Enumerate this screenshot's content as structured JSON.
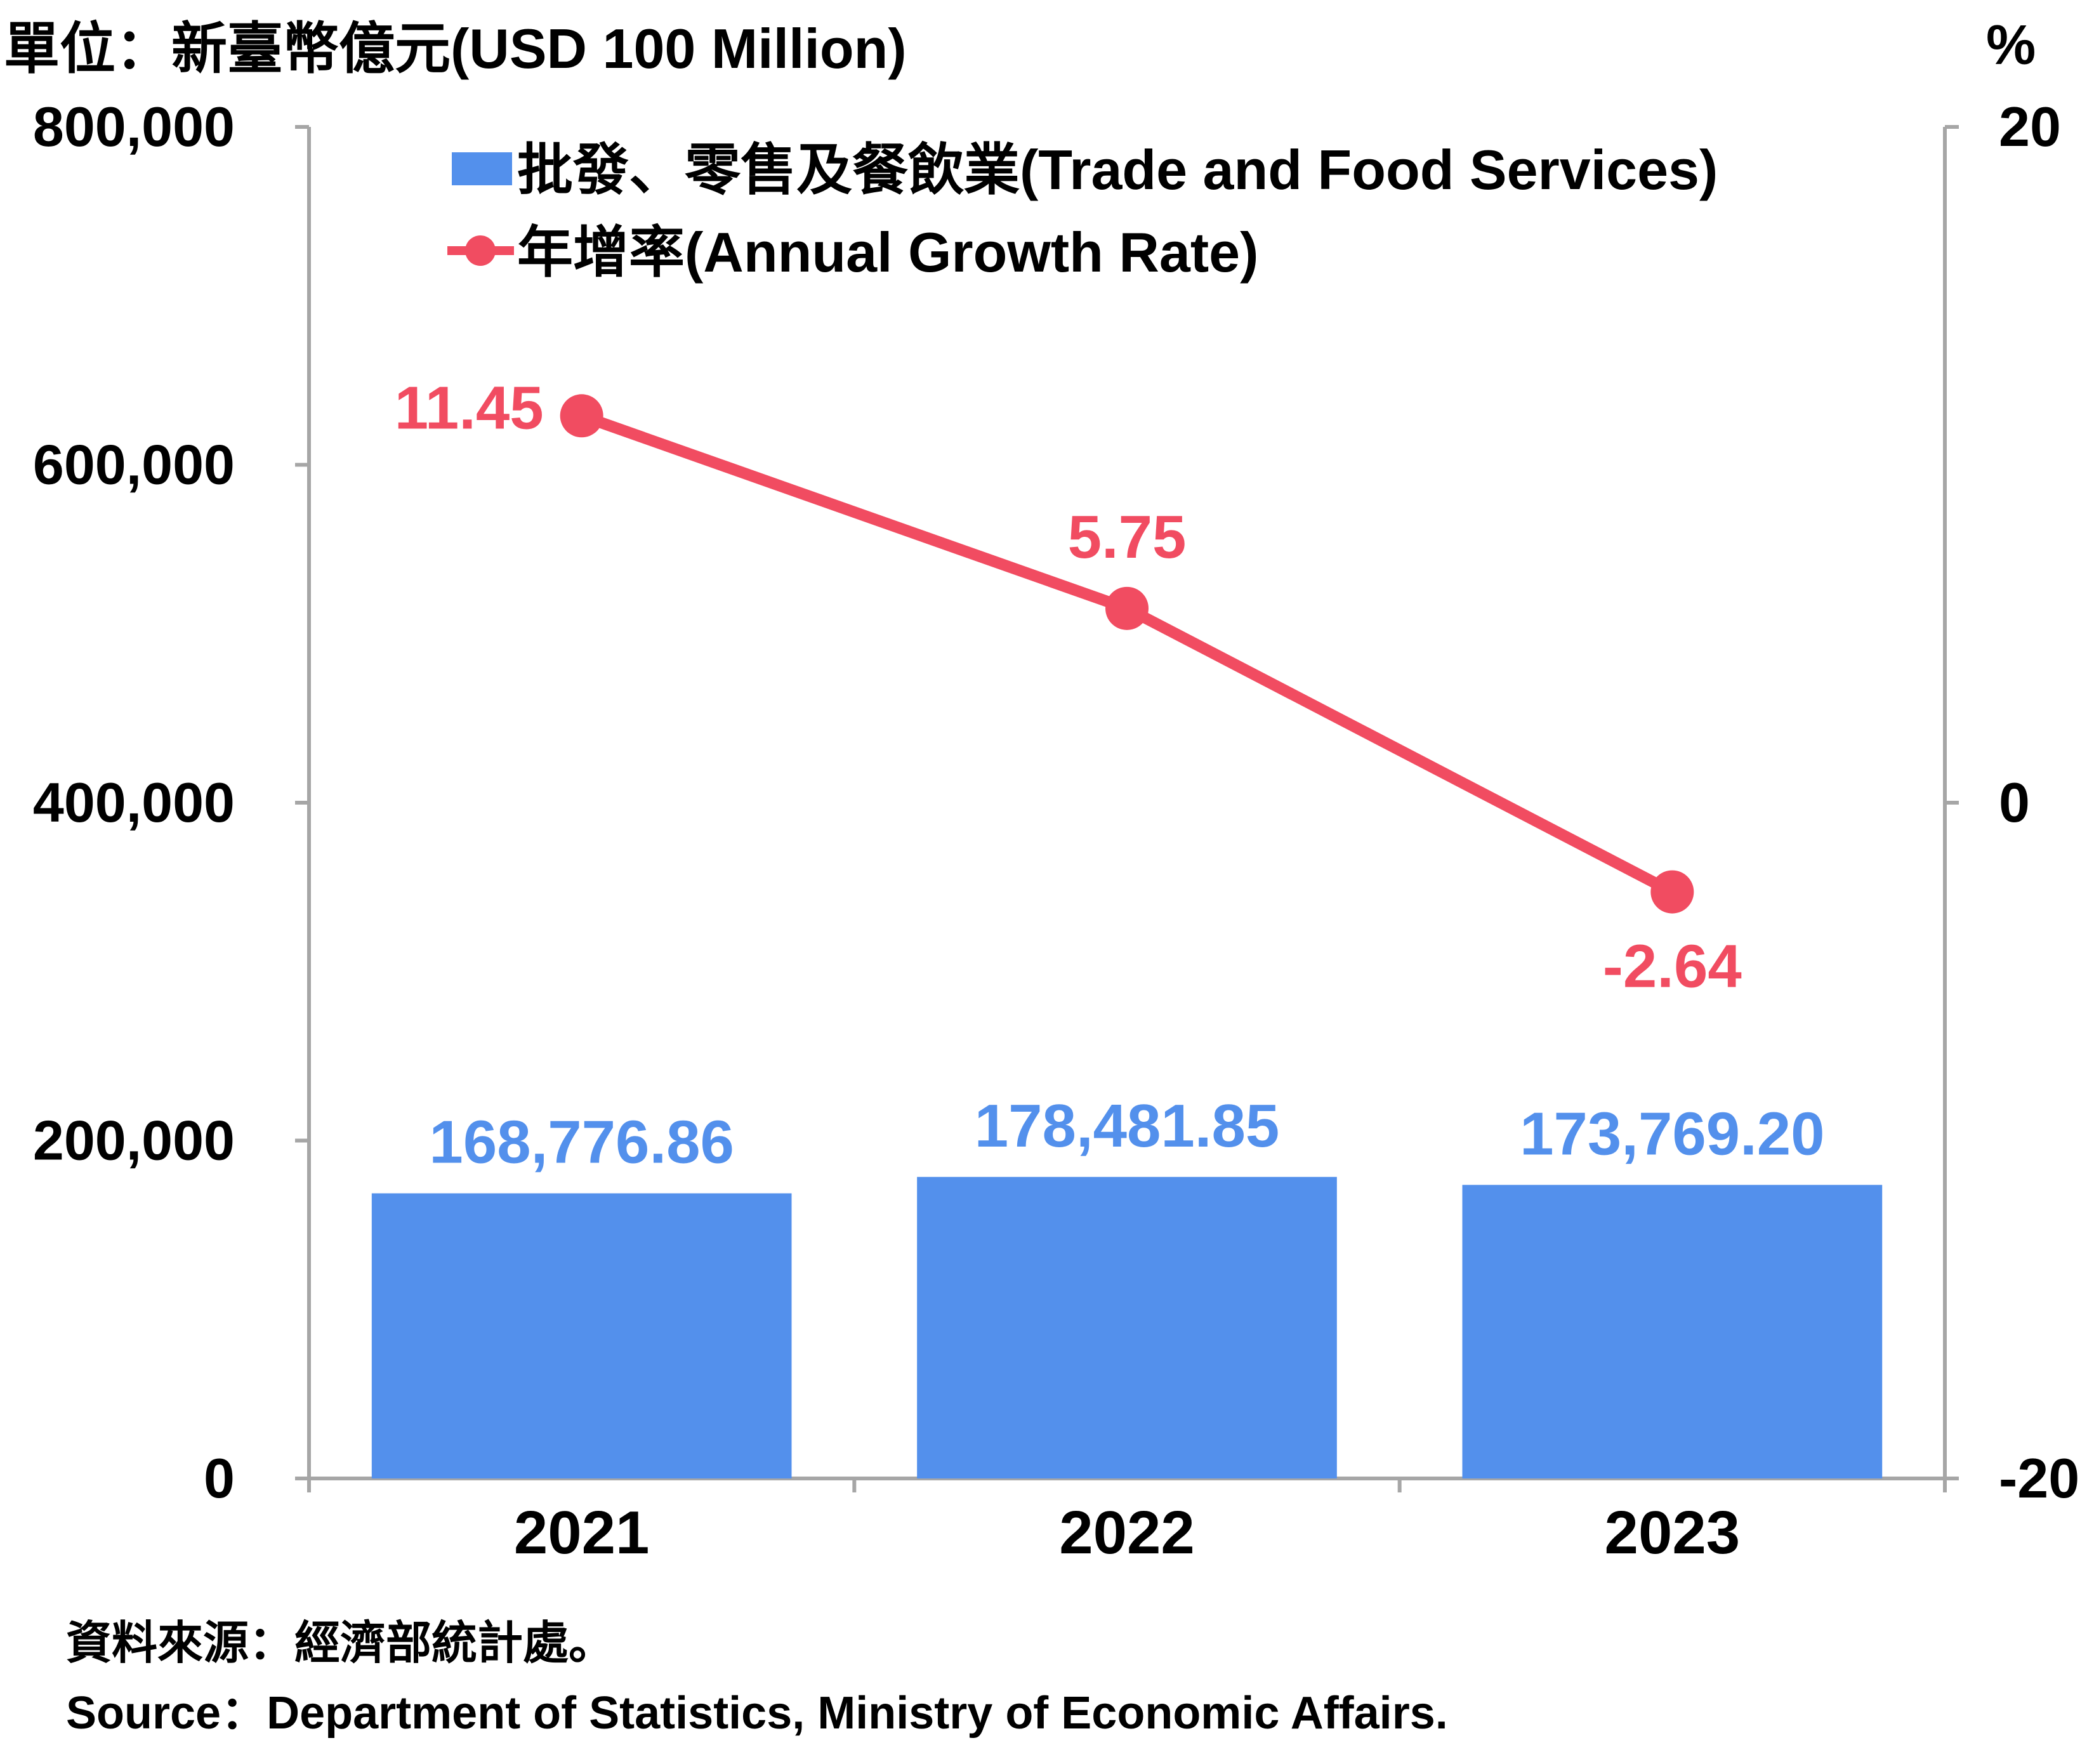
{
  "unit_left": "單位：新臺幣億元(USD 100 Million)",
  "unit_right": "%",
  "source_zh": "資料來源：經濟部統計處。",
  "source_en": "Source：Department of Statistics, Ministry of Economic Affairs.",
  "colors": {
    "bar": "#5390ec",
    "line": "#f14c61",
    "axis": "#a6a6a6"
  },
  "chart_data": {
    "type": "bar",
    "categories": [
      "2021",
      "2022",
      "2023"
    ],
    "series": [
      {
        "name": "批發、零售及餐飲業(Trade and Food Services)",
        "type": "bar",
        "axis": "left",
        "values": [
          168776.86,
          178481.85,
          173769.2
        ],
        "labels": [
          "168,776.86",
          "178,481.85",
          "173,769.20"
        ]
      },
      {
        "name": "年增率(Annual Growth Rate)",
        "type": "line",
        "axis": "right",
        "values": [
          11.45,
          5.75,
          -2.64
        ],
        "labels": [
          "11.45",
          "5.75",
          "-2.64"
        ]
      }
    ],
    "y_left": {
      "ylim": [
        0,
        800000
      ],
      "ticks": [
        0,
        200000,
        400000,
        600000,
        800000
      ],
      "tick_labels": [
        "0",
        "200,000",
        "400,000",
        "600,000",
        "800,000"
      ]
    },
    "y_right": {
      "ylim": [
        -20,
        20
      ],
      "ticks": [
        -20,
        0,
        20
      ],
      "tick_labels": [
        "-20",
        "0",
        "20"
      ]
    },
    "legend_position": "top-left"
  }
}
